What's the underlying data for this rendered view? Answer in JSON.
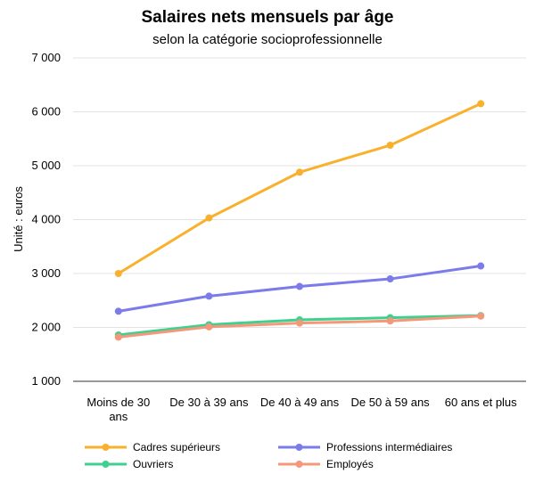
{
  "chart_data": {
    "type": "line",
    "title": "Salaires nets mensuels par âge",
    "subtitle": "selon la catégorie socioprofessionnelle",
    "xlabel": "",
    "ylabel": "Unité : euros",
    "categories": [
      [
        "Moins de 30",
        "ans"
      ],
      [
        "De 30 à 39 ans"
      ],
      [
        "De 40 à 49 ans"
      ],
      [
        "De 50 à 59 ans"
      ],
      [
        "60 ans et plus"
      ]
    ],
    "ylim": [
      1000,
      7000
    ],
    "yticks": [
      1000,
      2000,
      3000,
      4000,
      5000,
      6000,
      7000
    ],
    "ytick_labels": [
      "1 000",
      "2 000",
      "3 000",
      "4 000",
      "5 000",
      "6 000",
      "7 000"
    ],
    "grid": true,
    "legend_position": "bottom",
    "series": [
      {
        "name": "Cadres supérieurs",
        "color": "#F9B12D",
        "values": [
          3000,
          4030,
          4880,
          5380,
          6150
        ]
      },
      {
        "name": "Professions intermédiaires",
        "color": "#7B7BEA",
        "values": [
          2300,
          2580,
          2760,
          2900,
          3140
        ]
      },
      {
        "name": "Ouvriers",
        "color": "#3FD08F",
        "values": [
          1860,
          2050,
          2140,
          2180,
          2220
        ]
      },
      {
        "name": "Employés",
        "color": "#F5977A",
        "values": [
          1820,
          2010,
          2080,
          2120,
          2210
        ]
      }
    ]
  }
}
